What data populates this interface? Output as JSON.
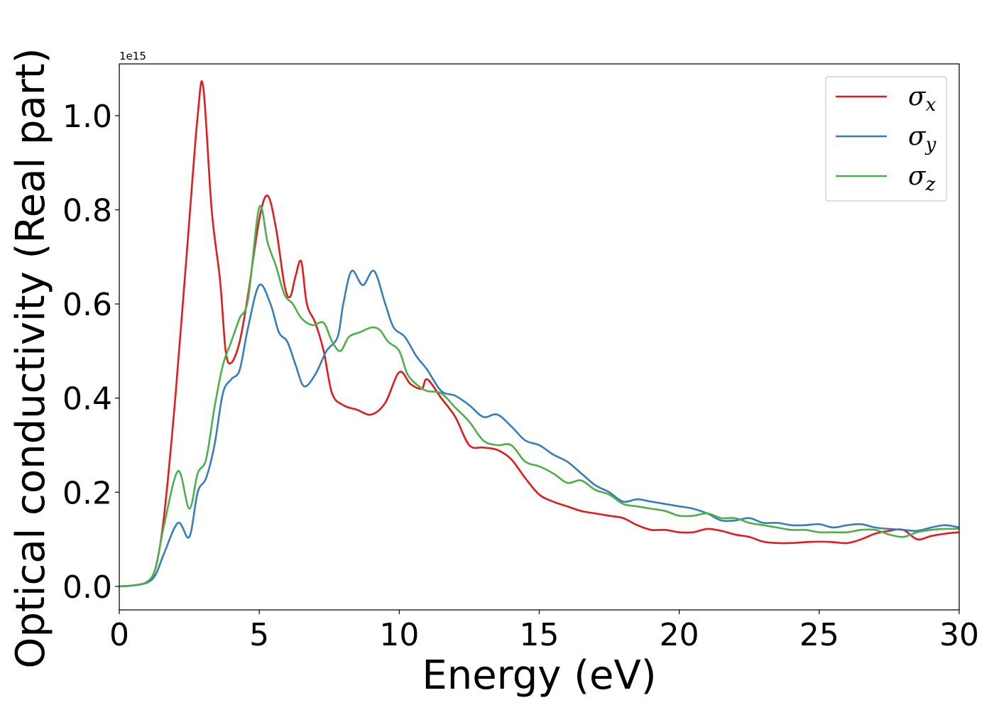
{
  "chart_data": {
    "type": "line",
    "xlabel": "Energy (eV)",
    "ylabel": "Optical conductivity (Real part)",
    "offset_text": "1e15",
    "xlim": [
      0,
      30
    ],
    "ylim": [
      -0.05,
      1.11
    ],
    "x_ticks": [
      0,
      5,
      10,
      15,
      20,
      25,
      30
    ],
    "x_tick_labels": [
      "0",
      "5",
      "10",
      "15",
      "20",
      "25",
      "30"
    ],
    "y_ticks": [
      0.0,
      0.2,
      0.4,
      0.6,
      0.8,
      1.0
    ],
    "y_tick_labels": [
      "0.0",
      "0.2",
      "0.4",
      "0.6",
      "0.8",
      "1.0"
    ],
    "grid": false,
    "legend_position": "top-right",
    "series": [
      {
        "name": "σ",
        "subscript": "x",
        "color": "#e41a1c",
        "x": [
          0,
          0.5,
          1.0,
          1.3,
          1.6,
          2.0,
          2.4,
          2.8,
          3.0,
          3.3,
          3.6,
          3.8,
          4.0,
          4.3,
          4.6,
          5.0,
          5.3,
          5.6,
          5.9,
          6.1,
          6.3,
          6.5,
          6.7,
          7.0,
          7.3,
          7.6,
          8.0,
          8.5,
          9.0,
          9.5,
          10.0,
          10.4,
          10.8,
          11.0,
          11.5,
          12.0,
          12.5,
          13.0,
          13.5,
          14.0,
          14.5,
          15.0,
          15.5,
          16.0,
          16.5,
          17.0,
          17.5,
          18.0,
          18.5,
          19.0,
          19.5,
          20.0,
          20.5,
          21.0,
          21.5,
          22.0,
          22.5,
          23.0,
          23.5,
          24.0,
          24.5,
          25.0,
          25.5,
          26.0,
          26.5,
          27.0,
          27.5,
          28.0,
          28.5,
          29.0,
          29.5,
          30.0
        ],
        "y": [
          0,
          0.002,
          0.01,
          0.04,
          0.15,
          0.4,
          0.7,
          1.0,
          1.06,
          0.8,
          0.65,
          0.5,
          0.475,
          0.52,
          0.62,
          0.78,
          0.83,
          0.76,
          0.64,
          0.615,
          0.66,
          0.69,
          0.6,
          0.56,
          0.5,
          0.41,
          0.385,
          0.375,
          0.365,
          0.39,
          0.455,
          0.43,
          0.42,
          0.44,
          0.4,
          0.36,
          0.3,
          0.295,
          0.29,
          0.27,
          0.23,
          0.195,
          0.18,
          0.17,
          0.16,
          0.155,
          0.15,
          0.145,
          0.13,
          0.12,
          0.12,
          0.115,
          0.115,
          0.122,
          0.118,
          0.11,
          0.105,
          0.095,
          0.092,
          0.092,
          0.094,
          0.095,
          0.094,
          0.092,
          0.1,
          0.112,
          0.118,
          0.12,
          0.1,
          0.107,
          0.112,
          0.115
        ]
      },
      {
        "name": "σ",
        "subscript": "y",
        "color": "#377eb8",
        "x": [
          0,
          0.5,
          1.0,
          1.3,
          1.6,
          2.1,
          2.5,
          2.8,
          3.1,
          3.4,
          3.7,
          4.0,
          4.3,
          4.6,
          5.0,
          5.4,
          5.7,
          6.0,
          6.3,
          6.6,
          7.0,
          7.4,
          7.8,
          8.0,
          8.3,
          8.7,
          9.1,
          9.5,
          9.8,
          10.2,
          10.6,
          11.0,
          11.5,
          12.0,
          12.5,
          13.0,
          13.5,
          14.0,
          14.5,
          15.0,
          15.5,
          16.0,
          16.5,
          17.0,
          17.5,
          18.0,
          18.5,
          19.0,
          19.5,
          20.0,
          20.5,
          21.0,
          21.5,
          22.0,
          22.5,
          23.0,
          23.5,
          24.0,
          24.5,
          25.0,
          25.5,
          26.0,
          26.5,
          27.0,
          27.5,
          28.0,
          28.5,
          29.0,
          29.5,
          30.0
        ],
        "y": [
          0,
          0.002,
          0.008,
          0.025,
          0.07,
          0.135,
          0.105,
          0.2,
          0.23,
          0.3,
          0.41,
          0.44,
          0.46,
          0.55,
          0.64,
          0.6,
          0.54,
          0.52,
          0.47,
          0.425,
          0.45,
          0.5,
          0.53,
          0.6,
          0.67,
          0.64,
          0.67,
          0.6,
          0.55,
          0.53,
          0.49,
          0.46,
          0.415,
          0.405,
          0.385,
          0.36,
          0.365,
          0.34,
          0.31,
          0.3,
          0.28,
          0.265,
          0.24,
          0.215,
          0.2,
          0.18,
          0.185,
          0.18,
          0.175,
          0.17,
          0.165,
          0.155,
          0.14,
          0.14,
          0.145,
          0.135,
          0.135,
          0.13,
          0.13,
          0.132,
          0.125,
          0.13,
          0.132,
          0.125,
          0.122,
          0.12,
          0.118,
          0.125,
          0.13,
          0.125
        ]
      },
      {
        "name": "σ",
        "subscript": "z",
        "color": "#4daf4a",
        "x": [
          0,
          0.5,
          1.0,
          1.3,
          1.6,
          2.1,
          2.5,
          2.8,
          3.1,
          3.4,
          3.7,
          4.0,
          4.3,
          4.6,
          5.0,
          5.3,
          5.6,
          5.9,
          6.2,
          6.5,
          6.9,
          7.3,
          7.6,
          7.9,
          8.2,
          8.6,
          9.0,
          9.3,
          9.6,
          10.0,
          10.3,
          10.7,
          11.0,
          11.5,
          12.0,
          12.5,
          13.0,
          13.5,
          14.0,
          14.5,
          15.0,
          15.5,
          16.0,
          16.5,
          17.0,
          17.5,
          18.0,
          18.5,
          19.0,
          19.5,
          20.0,
          20.5,
          21.0,
          21.5,
          22.0,
          22.5,
          23.0,
          23.5,
          24.0,
          24.5,
          25.0,
          25.5,
          26.0,
          26.5,
          27.0,
          27.5,
          28.0,
          28.5,
          29.0,
          29.5,
          30.0
        ],
        "y": [
          0,
          0.002,
          0.01,
          0.04,
          0.13,
          0.245,
          0.165,
          0.24,
          0.27,
          0.38,
          0.47,
          0.52,
          0.57,
          0.61,
          0.805,
          0.73,
          0.68,
          0.62,
          0.6,
          0.57,
          0.555,
          0.56,
          0.52,
          0.5,
          0.53,
          0.54,
          0.55,
          0.545,
          0.52,
          0.5,
          0.45,
          0.425,
          0.415,
          0.41,
          0.38,
          0.35,
          0.31,
          0.3,
          0.3,
          0.265,
          0.255,
          0.24,
          0.22,
          0.225,
          0.205,
          0.195,
          0.175,
          0.17,
          0.165,
          0.16,
          0.15,
          0.15,
          0.155,
          0.145,
          0.145,
          0.135,
          0.13,
          0.125,
          0.12,
          0.12,
          0.115,
          0.115,
          0.115,
          0.12,
          0.12,
          0.11,
          0.105,
          0.115,
          0.12,
          0.122,
          0.122
        ]
      }
    ]
  }
}
